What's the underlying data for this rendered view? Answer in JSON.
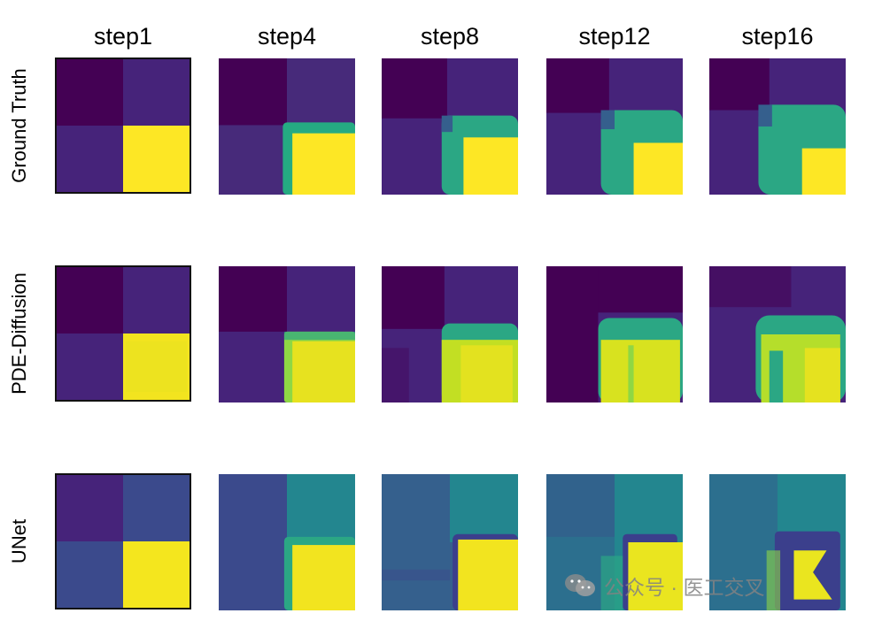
{
  "figure": {
    "columns": [
      "step1",
      "step4",
      "step8",
      "step12",
      "step16"
    ],
    "rows": [
      "Ground Truth",
      "PDE-Diffusion",
      "UNet"
    ]
  },
  "colors": {
    "dark_purple": "#440154",
    "mid_purple": "#46237a",
    "deep_blue_purple": "#472a7a",
    "teal_green": "#2ba784",
    "yellow": "#f4e61e",
    "unet_blue": "#3b4a8c",
    "unet_teal": "#23868f"
  },
  "watermark": {
    "icon": "wechat-icon",
    "text": "公众号 · 医工交叉"
  }
}
